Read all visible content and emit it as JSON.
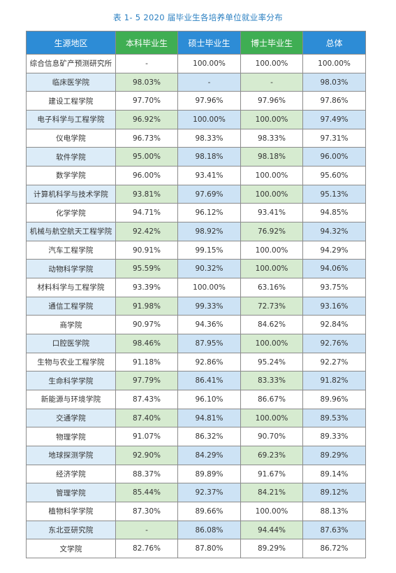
{
  "caption": "表 1- 5  2020 届毕业生各培养单位就业率分布",
  "columns": [
    "生源地区",
    "本科毕业生",
    "硕士毕业生",
    "博士毕业生",
    "总体"
  ],
  "rows": [
    {
      "unit": "综合信息矿产预测研究所",
      "undergrad": "-",
      "master": "100.00%",
      "phd": "100.00%",
      "total": "100.00%"
    },
    {
      "unit": "临床医学院",
      "undergrad": "98.03%",
      "master": "-",
      "phd": "-",
      "total": "98.03%"
    },
    {
      "unit": "建设工程学院",
      "undergrad": "97.70%",
      "master": "97.96%",
      "phd": "97.96%",
      "total": "97.86%"
    },
    {
      "unit": "电子科学与工程学院",
      "undergrad": "96.92%",
      "master": "100.00%",
      "phd": "100.00%",
      "total": "97.49%"
    },
    {
      "unit": "仪电学院",
      "undergrad": "96.73%",
      "master": "98.33%",
      "phd": "98.33%",
      "total": "97.31%"
    },
    {
      "unit": "软件学院",
      "undergrad": "95.00%",
      "master": "98.18%",
      "phd": "98.18%",
      "total": "96.00%"
    },
    {
      "unit": "数学学院",
      "undergrad": "96.00%",
      "master": "93.41%",
      "phd": "100.00%",
      "total": "95.60%"
    },
    {
      "unit": "计算机科学与技术学院",
      "undergrad": "93.81%",
      "master": "97.69%",
      "phd": "100.00%",
      "total": "95.13%"
    },
    {
      "unit": "化学学院",
      "undergrad": "94.71%",
      "master": "96.12%",
      "phd": "93.41%",
      "total": "94.85%"
    },
    {
      "unit": "机械与航空航天工程学院",
      "undergrad": "92.42%",
      "master": "98.92%",
      "phd": "76.92%",
      "total": "94.32%"
    },
    {
      "unit": "汽车工程学院",
      "undergrad": "90.91%",
      "master": "99.15%",
      "phd": "100.00%",
      "total": "94.29%"
    },
    {
      "unit": "动物科学学院",
      "undergrad": "95.59%",
      "master": "90.32%",
      "phd": "100.00%",
      "total": "94.06%"
    },
    {
      "unit": "材料科学与工程学院",
      "undergrad": "93.39%",
      "master": "100.00%",
      "phd": "63.16%",
      "total": "93.75%"
    },
    {
      "unit": "通信工程学院",
      "undergrad": "91.98%",
      "master": "99.33%",
      "phd": "72.73%",
      "total": "93.16%"
    },
    {
      "unit": "商学院",
      "undergrad": "90.97%",
      "master": "94.36%",
      "phd": "84.62%",
      "total": "92.84%"
    },
    {
      "unit": "口腔医学院",
      "undergrad": "98.46%",
      "master": "87.95%",
      "phd": "100.00%",
      "total": "92.76%"
    },
    {
      "unit": "生物与农业工程学院",
      "undergrad": "91.18%",
      "master": "92.86%",
      "phd": "95.24%",
      "total": "92.27%"
    },
    {
      "unit": "生命科学学院",
      "undergrad": "97.79%",
      "master": "86.41%",
      "phd": "83.33%",
      "total": "91.82%"
    },
    {
      "unit": "新能源与环境学院",
      "undergrad": "87.43%",
      "master": "96.10%",
      "phd": "86.67%",
      "total": "89.96%"
    },
    {
      "unit": "交通学院",
      "undergrad": "87.40%",
      "master": "94.81%",
      "phd": "100.00%",
      "total": "89.53%"
    },
    {
      "unit": "物理学院",
      "undergrad": "91.07%",
      "master": "86.32%",
      "phd": "90.70%",
      "total": "89.33%"
    },
    {
      "unit": "地球探测学院",
      "undergrad": "92.90%",
      "master": "84.29%",
      "phd": "69.23%",
      "total": "89.29%"
    },
    {
      "unit": "经济学院",
      "undergrad": "88.37%",
      "master": "89.89%",
      "phd": "91.67%",
      "total": "89.14%"
    },
    {
      "unit": "管理学院",
      "undergrad": "85.44%",
      "master": "92.37%",
      "phd": "84.21%",
      "total": "89.12%"
    },
    {
      "unit": "植物科学学院",
      "undergrad": "87.30%",
      "master": "89.66%",
      "phd": "100.00%",
      "total": "88.13%"
    },
    {
      "unit": "东北亚研究院",
      "undergrad": "-",
      "master": "86.08%",
      "phd": "94.44%",
      "total": "87.63%"
    },
    {
      "unit": "文学院",
      "undergrad": "82.76%",
      "master": "87.80%",
      "phd": "89.29%",
      "total": "86.72%"
    }
  ],
  "colors": {
    "caption": "#2a7fc1",
    "header_blue": "#2d8cd6",
    "header_green": "#3fae53",
    "band_blue": "#cde3f5",
    "band_green": "#d6ebd0"
  }
}
